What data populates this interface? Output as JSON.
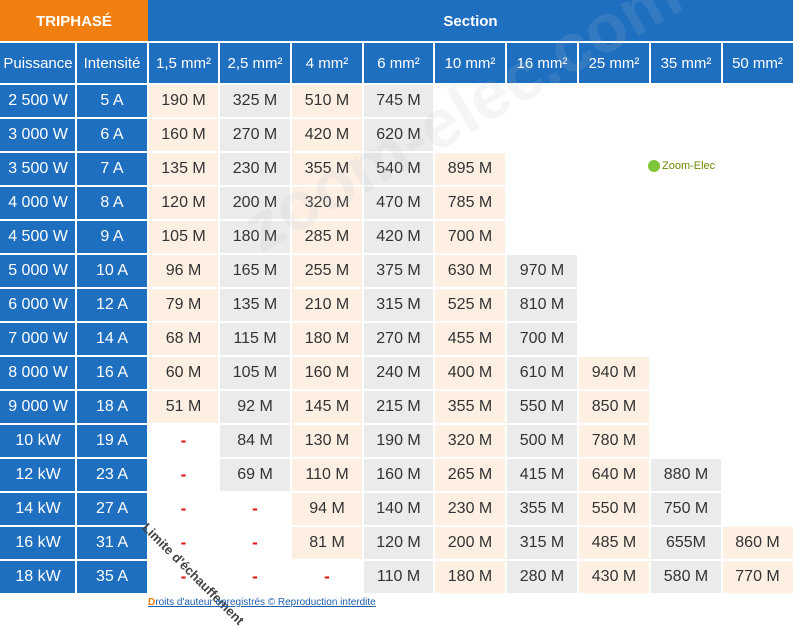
{
  "header": {
    "title": "TRIPHASÉ",
    "section_label": "Section",
    "col_power": "Puissance",
    "col_current": "Intensité",
    "sections": [
      "1,5 mm²",
      "2,5 mm²",
      "4 mm²",
      "6 mm²",
      "10 mm²",
      "16 mm²",
      "25 mm²",
      "35 mm²",
      "50 mm²"
    ]
  },
  "rows": [
    {
      "power": "2 500 W",
      "current": "5 A",
      "values": [
        "190 M",
        "325 M",
        "510 M",
        "745 M",
        "",
        "",
        "",
        "",
        ""
      ]
    },
    {
      "power": "3 000 W",
      "current": "6 A",
      "values": [
        "160 M",
        "270 M",
        "420 M",
        "620 M",
        "",
        "",
        "",
        "",
        ""
      ]
    },
    {
      "power": "3 500 W",
      "current": "7 A",
      "values": [
        "135 M",
        "230 M",
        "355 M",
        "540 M",
        "895 M",
        "",
        "",
        "",
        ""
      ]
    },
    {
      "power": "4 000 W",
      "current": "8 A",
      "values": [
        "120 M",
        "200 M",
        "320 M",
        "470 M",
        "785 M",
        "",
        "",
        "",
        ""
      ]
    },
    {
      "power": "4 500 W",
      "current": "9 A",
      "values": [
        "105 M",
        "180 M",
        "285 M",
        "420 M",
        "700 M",
        "",
        "",
        "",
        ""
      ]
    },
    {
      "power": "5 000 W",
      "current": "10 A",
      "values": [
        "96 M",
        "165 M",
        "255 M",
        "375 M",
        "630 M",
        "970 M",
        "",
        "",
        ""
      ]
    },
    {
      "power": "6 000 W",
      "current": "12 A",
      "values": [
        "79 M",
        "135 M",
        "210 M",
        "315 M",
        "525 M",
        "810 M",
        "",
        "",
        ""
      ]
    },
    {
      "power": "7 000 W",
      "current": "14 A",
      "values": [
        "68 M",
        "115 M",
        "180 M",
        "270 M",
        "455 M",
        "700 M",
        "",
        "",
        ""
      ]
    },
    {
      "power": "8 000 W",
      "current": "16 A",
      "values": [
        "60 M",
        "105 M",
        "160 M",
        "240 M",
        "400 M",
        "610 M",
        "940 M",
        "",
        ""
      ]
    },
    {
      "power": "9 000 W",
      "current": "18 A",
      "values": [
        "51 M",
        "92 M",
        "145 M",
        "215 M",
        "355 M",
        "550 M",
        "850 M",
        "",
        ""
      ]
    },
    {
      "power": "10 kW",
      "current": "19 A",
      "values": [
        "-",
        "84 M",
        "130 M",
        "190 M",
        "320 M",
        "500 M",
        "780 M",
        "",
        ""
      ]
    },
    {
      "power": "12 kW",
      "current": "23 A",
      "values": [
        "-",
        "69 M",
        "110 M",
        "160 M",
        "265 M",
        "415 M",
        "640 M",
        "880 M",
        ""
      ]
    },
    {
      "power": "14 kW",
      "current": "27 A",
      "values": [
        "-",
        "-",
        "94 M",
        "140 M",
        "230 M",
        "355 M",
        "550 M",
        "750 M",
        ""
      ]
    },
    {
      "power": "16 kW",
      "current": "31 A",
      "values": [
        "-",
        "-",
        "81 M",
        "120 M",
        "200 M",
        "315 M",
        "485 M",
        "655M",
        "860 M"
      ]
    },
    {
      "power": "18 kW",
      "current": "35 A",
      "values": [
        "-",
        "-",
        "-",
        "110 M",
        "180 M",
        "280 M",
        "430 M",
        "580 M",
        "770 M"
      ]
    }
  ],
  "annotation": "Limite d'échauffement",
  "logo_text": "Zoom-Elec",
  "watermark": "zoom-elec.com",
  "footer": {
    "initial": "D",
    "text": "roits d'auteur enregistrés © Reproduction interdite"
  },
  "colors": {
    "orange": "#f07f0f",
    "blue": "#1e6fc0",
    "peach": "#fdf0e3",
    "gray": "#ebebeb",
    "dash": "#e21010"
  }
}
